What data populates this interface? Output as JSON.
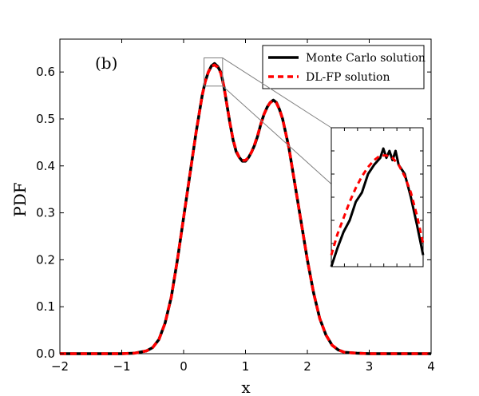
{
  "chart_data": {
    "type": "line",
    "title": "",
    "panel_label": "(b)",
    "xlabel": "x",
    "ylabel": "PDF",
    "xlim": [
      -2,
      4
    ],
    "ylim": [
      0,
      0.67
    ],
    "xticks": [
      -2,
      -1,
      0,
      1,
      2,
      3,
      4
    ],
    "xtick_labels": [
      "−2",
      "−1",
      "0",
      "1",
      "2",
      "3",
      "4"
    ],
    "yticks": [
      0.0,
      0.1,
      0.2,
      0.3,
      0.4,
      0.5,
      0.6
    ],
    "ytick_labels": [
      "0.0",
      "0.1",
      "0.2",
      "0.3",
      "0.4",
      "0.5",
      "0.6"
    ],
    "legend": [
      "Monte Carlo solution",
      "DL-FP solution"
    ],
    "legend_position": "top-right",
    "series": [
      {
        "name": "Monte Carlo solution",
        "color": "#000000",
        "style": "solid",
        "x": [
          -2.0,
          -1.0,
          -0.8,
          -0.6,
          -0.5,
          -0.4,
          -0.3,
          -0.2,
          -0.1,
          0.0,
          0.1,
          0.2,
          0.3,
          0.35,
          0.4,
          0.45,
          0.5,
          0.55,
          0.6,
          0.65,
          0.7,
          0.75,
          0.8,
          0.85,
          0.9,
          0.95,
          1.0,
          1.05,
          1.1,
          1.15,
          1.2,
          1.25,
          1.3,
          1.35,
          1.4,
          1.45,
          1.5,
          1.55,
          1.6,
          1.7,
          1.8,
          1.9,
          2.0,
          2.1,
          2.2,
          2.3,
          2.4,
          2.5,
          2.6,
          2.8,
          3.0,
          4.0
        ],
        "y": [
          0.0,
          0.0,
          0.001,
          0.006,
          0.013,
          0.03,
          0.065,
          0.12,
          0.2,
          0.29,
          0.38,
          0.47,
          0.55,
          0.58,
          0.6,
          0.613,
          0.618,
          0.612,
          0.6,
          0.57,
          0.53,
          0.49,
          0.455,
          0.43,
          0.418,
          0.41,
          0.41,
          0.418,
          0.43,
          0.445,
          0.465,
          0.49,
          0.51,
          0.525,
          0.535,
          0.54,
          0.535,
          0.52,
          0.5,
          0.44,
          0.36,
          0.28,
          0.2,
          0.13,
          0.075,
          0.04,
          0.018,
          0.008,
          0.003,
          0.001,
          0.0,
          0.0
        ]
      },
      {
        "name": "DL-FP solution",
        "color": "#ff0000",
        "style": "dashed",
        "x": [
          -2.0,
          -1.0,
          -0.8,
          -0.6,
          -0.5,
          -0.4,
          -0.3,
          -0.2,
          -0.1,
          0.0,
          0.1,
          0.2,
          0.3,
          0.35,
          0.4,
          0.45,
          0.5,
          0.55,
          0.6,
          0.65,
          0.7,
          0.75,
          0.8,
          0.85,
          0.9,
          0.95,
          1.0,
          1.05,
          1.1,
          1.15,
          1.2,
          1.25,
          1.3,
          1.35,
          1.4,
          1.45,
          1.5,
          1.55,
          1.6,
          1.7,
          1.8,
          1.9,
          2.0,
          2.1,
          2.2,
          2.3,
          2.4,
          2.5,
          2.6,
          2.8,
          3.0,
          4.0
        ],
        "y": [
          0.0,
          0.0,
          0.001,
          0.006,
          0.013,
          0.03,
          0.065,
          0.12,
          0.2,
          0.29,
          0.38,
          0.47,
          0.55,
          0.58,
          0.6,
          0.612,
          0.615,
          0.61,
          0.598,
          0.57,
          0.53,
          0.49,
          0.456,
          0.432,
          0.418,
          0.412,
          0.412,
          0.418,
          0.43,
          0.447,
          0.467,
          0.49,
          0.51,
          0.525,
          0.535,
          0.538,
          0.534,
          0.52,
          0.5,
          0.44,
          0.36,
          0.28,
          0.2,
          0.13,
          0.075,
          0.04,
          0.018,
          0.008,
          0.003,
          0.001,
          0.0,
          0.0
        ]
      }
    ],
    "inset": {
      "source_xlim": [
        0.33,
        0.63
      ],
      "source_ylim": [
        0.57,
        0.63
      ],
      "mc_x": [
        0.33,
        0.35,
        0.37,
        0.39,
        0.41,
        0.43,
        0.45,
        0.47,
        0.49,
        0.5,
        0.51,
        0.52,
        0.53,
        0.54,
        0.55,
        0.56,
        0.57,
        0.59,
        0.61,
        0.63
      ],
      "mc_y": [
        0.57,
        0.578,
        0.585,
        0.59,
        0.598,
        0.602,
        0.61,
        0.614,
        0.617,
        0.621,
        0.617,
        0.62,
        0.616,
        0.62,
        0.614,
        0.612,
        0.61,
        0.6,
        0.588,
        0.575
      ],
      "dl_x": [
        0.33,
        0.35,
        0.37,
        0.39,
        0.41,
        0.43,
        0.45,
        0.47,
        0.49,
        0.51,
        0.53,
        0.55,
        0.57,
        0.59,
        0.61,
        0.63
      ],
      "dl_y": [
        0.575,
        0.584,
        0.591,
        0.598,
        0.604,
        0.609,
        0.613,
        0.616,
        0.618,
        0.618,
        0.617,
        0.614,
        0.609,
        0.602,
        0.592,
        0.58
      ]
    }
  }
}
